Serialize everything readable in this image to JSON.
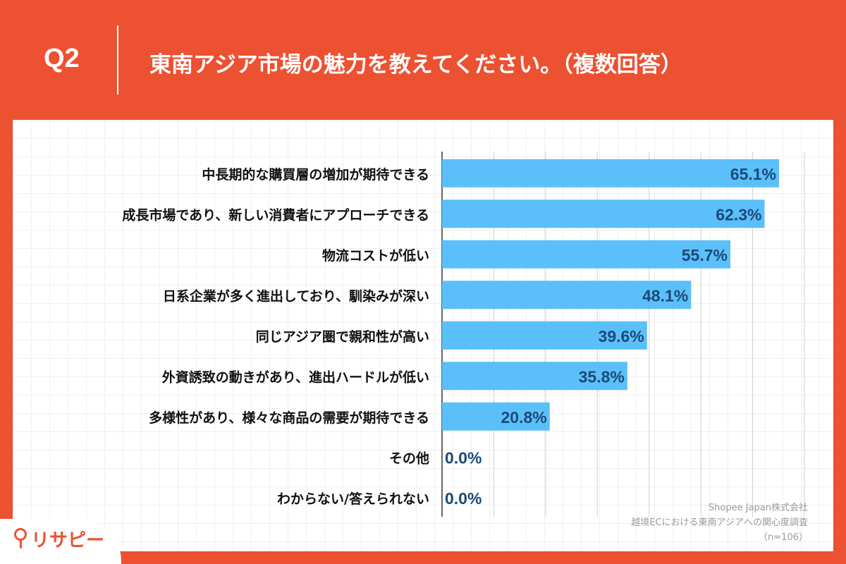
{
  "header": {
    "question_number": "Q2",
    "question": "東南アジア市場の魅力を教えてください。（複数回答）"
  },
  "colors": {
    "background": "#ec5132",
    "bar": "#5bbffa",
    "value_label": "#1b4a78",
    "category_label": "#111111"
  },
  "chart_data": {
    "type": "bar",
    "orientation": "horizontal",
    "categories": [
      "中長期的な購買層の増加が期待できる",
      "成長市場であり、新しい消費者にアプローチできる",
      "物流コストが低い",
      "日系企業が多く進出しており、馴染みが深い",
      "同じアジア圏で親和性が高い",
      "外資誘致の動きがあり、進出ハードルが低い",
      "多様性があり、様々な商品の需要が期待できる",
      "その他",
      "わからない/答えられない"
    ],
    "values": [
      65.1,
      62.3,
      55.7,
      48.1,
      39.6,
      35.8,
      20.8,
      0.0,
      0.0
    ],
    "value_labels": [
      "65.1%",
      "62.3%",
      "55.7%",
      "48.1%",
      "39.6%",
      "35.8%",
      "20.8%",
      "0.0%",
      "0.0%"
    ],
    "xlim": [
      0,
      70
    ],
    "grid": true,
    "title": "",
    "xlabel": "",
    "ylabel": ""
  },
  "source": {
    "line1": "Shopee Japan株式会社",
    "line2": "越境ECにおける東南アジアへの関心度調査",
    "line3": "（n=106）"
  },
  "brand": {
    "name": "リサピー",
    "icon": "map-pin-icon"
  }
}
